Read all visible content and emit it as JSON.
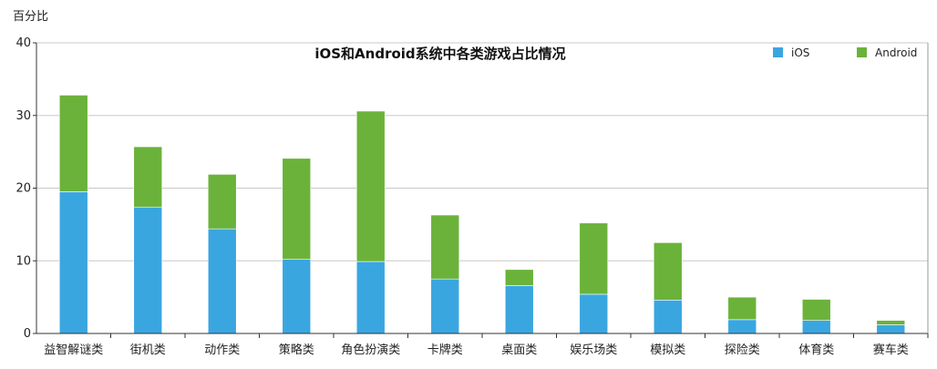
{
  "chart_data": {
    "type": "bar",
    "stacked": true,
    "title": "iOS和Android系统中各类游戏占比情况",
    "ylabel": "百分比",
    "xlabel": "",
    "ylim": [
      0,
      40
    ],
    "yticks": [
      0,
      10,
      20,
      30,
      40
    ],
    "grid": true,
    "legend_position": "top-right",
    "categories": [
      "益智解谜类",
      "街机类",
      "动作类",
      "策略类",
      "角色扮演类",
      "卡牌类",
      "桌面类",
      "娱乐场类",
      "模拟类",
      "探险类",
      "体育类",
      "赛车类"
    ],
    "series": [
      {
        "name": "iOS",
        "color": "#3aa6e0",
        "values": [
          19.5,
          17.4,
          14.4,
          10.2,
          9.9,
          7.5,
          6.6,
          5.4,
          4.6,
          1.9,
          1.8,
          1.2
        ]
      },
      {
        "name": "Android",
        "color": "#6bb23a",
        "values": [
          13.3,
          8.3,
          7.5,
          13.9,
          20.7,
          8.8,
          2.2,
          9.8,
          7.9,
          3.1,
          2.9,
          0.6
        ]
      }
    ]
  }
}
